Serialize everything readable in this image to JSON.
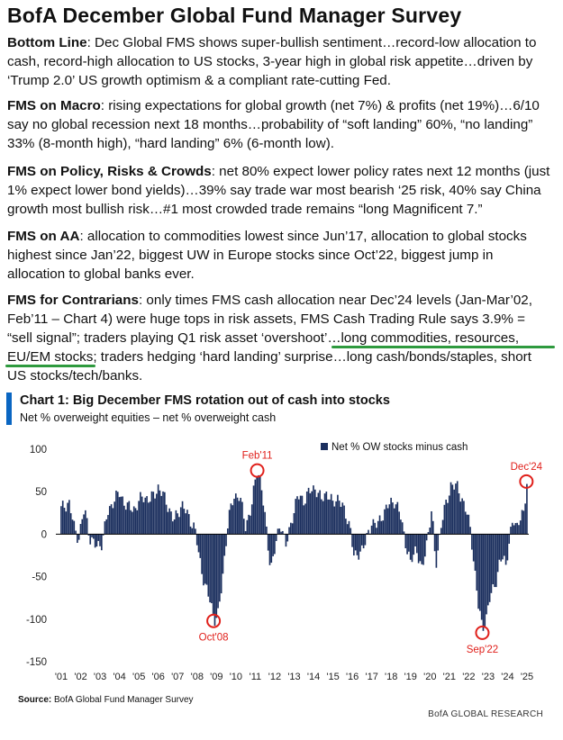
{
  "title": "BofA December Global Fund Manager Survey",
  "paragraphs": [
    {
      "label": "Bottom Line",
      "text": ": Dec Global FMS shows super-bullish sentiment…record-low allocation to cash, record-high allocation to US stocks, 3-year high in global risk appetite…driven by ‘Trump 2.0’ US growth optimism & a compliant rate-cutting Fed."
    },
    {
      "label": "FMS on Macro",
      "text": ": rising expectations for global growth (net 7%) & profits (net 19%)…6/10 say no global recession next 18 months…probability of “soft landing” 60%, “no landing” 33% (8-month high), “hard landing” 6% (6-month low)."
    },
    {
      "label": "FMS on Policy, Risks & Crowds",
      "text": ": net 80% expect lower policy rates next 12 months (just 1% expect lower bond yields)…39% say trade war most bearish ‘25 risk, 40% say China growth most bullish risk…#1 most crowded trade remains “long Magnificent 7.”"
    },
    {
      "label": "FMS on AA",
      "text": ": allocation to commodities lowest since Jun’17, allocation to global stocks highest since Jan’22, biggest UW in Europe stocks since Oct’22, biggest jump in allocation to global banks ever."
    },
    {
      "label": "FMS for Contrarians",
      "text": ": only times FMS cash allocation near Dec’24 levels (Jan-Mar’02, Feb’11 – Chart 4) were huge tops in risk assets, FMS Cash Trading Rule says 3.9% = “sell signal”; traders playing Q1 risk asset ‘overshoot’…long commodities, resources, EU/EM stocks; traders hedging ‘hard landing’ surprise…long cash/bonds/staples, short US stocks/tech/banks."
    }
  ],
  "colors": {
    "accent_bar": "#0a66c2",
    "bars": "#1b2f5e",
    "annotation": "#e0201b",
    "underline": "#2e9a3e"
  },
  "chart_data": {
    "type": "bar",
    "title": "Chart 1: Big December FMS rotation out of cash into stocks",
    "subtitle": "Net % overweight equities – net % overweight cash",
    "legend": "Net % OW stocks minus cash",
    "legend_position": "top-right",
    "ylim": [
      -150,
      100
    ],
    "yticks": [
      100,
      50,
      0,
      -50,
      -100,
      -150
    ],
    "xticks": [
      "'01",
      "'02",
      "'03",
      "'04",
      "'05",
      "'06",
      "'07",
      "'08",
      "'09",
      "'10",
      "'11",
      "'12",
      "'13",
      "'14",
      "'15",
      "'16",
      "'17",
      "'18",
      "'19",
      "'20",
      "'21",
      "'22",
      "'23",
      "'24",
      "'25"
    ],
    "x_range": [
      2001.0,
      2025.0
    ],
    "anchors": [
      [
        2001.0,
        30
      ],
      [
        2001.4,
        38
      ],
      [
        2001.7,
        5
      ],
      [
        2001.9,
        -5
      ],
      [
        2002.2,
        30
      ],
      [
        2002.5,
        -5
      ],
      [
        2002.8,
        -15
      ],
      [
        2003.1,
        -10
      ],
      [
        2003.4,
        25
      ],
      [
        2003.7,
        40
      ],
      [
        2004.0,
        48
      ],
      [
        2004.4,
        32
      ],
      [
        2004.8,
        30
      ],
      [
        2005.2,
        45
      ],
      [
        2005.6,
        40
      ],
      [
        2006.0,
        55
      ],
      [
        2006.4,
        40
      ],
      [
        2006.8,
        15
      ],
      [
        2007.2,
        35
      ],
      [
        2007.6,
        20
      ],
      [
        2007.9,
        5
      ],
      [
        2008.1,
        -25
      ],
      [
        2008.4,
        -60
      ],
      [
        2008.7,
        -80
      ],
      [
        2008.9,
        -100
      ],
      [
        2009.1,
        -95
      ],
      [
        2009.3,
        -55
      ],
      [
        2009.6,
        15
      ],
      [
        2009.9,
        45
      ],
      [
        2010.2,
        45
      ],
      [
        2010.5,
        10
      ],
      [
        2010.8,
        30
      ],
      [
        2011.1,
        78
      ],
      [
        2011.3,
        60
      ],
      [
        2011.6,
        0
      ],
      [
        2011.8,
        -40
      ],
      [
        2012.0,
        -20
      ],
      [
        2012.3,
        15
      ],
      [
        2012.6,
        -15
      ],
      [
        2012.9,
        20
      ],
      [
        2013.2,
        45
      ],
      [
        2013.5,
        40
      ],
      [
        2013.8,
        50
      ],
      [
        2014.1,
        55
      ],
      [
        2014.4,
        40
      ],
      [
        2014.7,
        50
      ],
      [
        2015.0,
        35
      ],
      [
        2015.3,
        45
      ],
      [
        2015.6,
        25
      ],
      [
        2015.9,
        10
      ],
      [
        2016.1,
        -30
      ],
      [
        2016.4,
        -20
      ],
      [
        2016.7,
        -10
      ],
      [
        2017.0,
        15
      ],
      [
        2017.3,
        10
      ],
      [
        2017.6,
        25
      ],
      [
        2017.9,
        35
      ],
      [
        2018.2,
        40
      ],
      [
        2018.5,
        20
      ],
      [
        2018.8,
        -15
      ],
      [
        2019.0,
        -35
      ],
      [
        2019.3,
        -15
      ],
      [
        2019.6,
        -45
      ],
      [
        2019.9,
        0
      ],
      [
        2020.1,
        30
      ],
      [
        2020.3,
        -40
      ],
      [
        2020.6,
        15
      ],
      [
        2020.9,
        40
      ],
      [
        2021.1,
        60
      ],
      [
        2021.4,
        55
      ],
      [
        2021.7,
        40
      ],
      [
        2021.9,
        25
      ],
      [
        2022.1,
        5
      ],
      [
        2022.3,
        -40
      ],
      [
        2022.5,
        -85
      ],
      [
        2022.7,
        -110
      ],
      [
        2022.9,
        -100
      ],
      [
        2023.1,
        -75
      ],
      [
        2023.4,
        -55
      ],
      [
        2023.6,
        -35
      ],
      [
        2023.8,
        -25
      ],
      [
        2023.9,
        -40
      ],
      [
        2024.1,
        -5
      ],
      [
        2024.3,
        15
      ],
      [
        2024.5,
        10
      ],
      [
        2024.7,
        25
      ],
      [
        2024.85,
        20
      ],
      [
        2025.0,
        62
      ]
    ],
    "annotations": [
      {
        "label": "Feb'11",
        "x": 2011.1,
        "y": 75
      },
      {
        "label": "Oct'08",
        "x": 2008.85,
        "y": -102
      },
      {
        "label": "Sep'22",
        "x": 2022.7,
        "y": -116
      },
      {
        "label": "Dec'24",
        "x": 2024.97,
        "y": 62
      }
    ]
  },
  "source": {
    "label": "Source:",
    "text": " BofA Global Fund Manager Survey"
  },
  "brand": "BofA GLOBAL RESEARCH"
}
